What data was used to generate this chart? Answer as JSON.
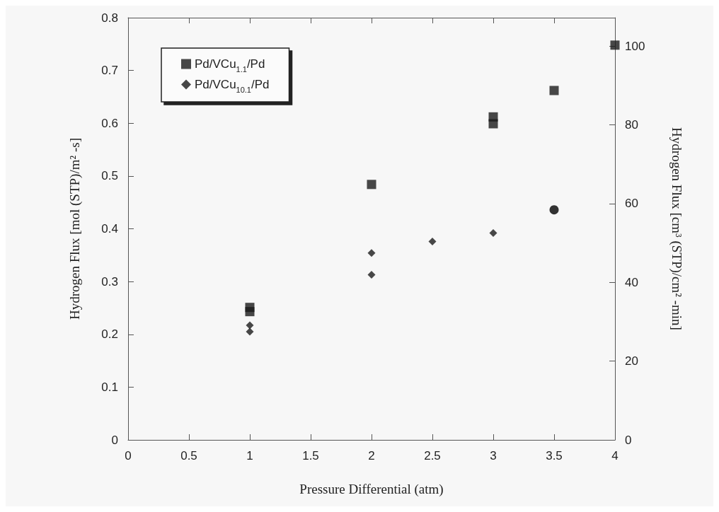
{
  "chart_data": {
    "type": "scatter",
    "xlabel": "Pressure Differential (atm)",
    "ylabel": "Hydrogen Flux [mol (STP)/m² -s]",
    "y2label": "Hydrogen Flux [cm³ (STP)/cm² -min]",
    "xlim": [
      0,
      4
    ],
    "xticks": [
      0,
      0.5,
      1,
      1.5,
      2,
      2.5,
      3,
      3.5,
      4
    ],
    "ylim": [
      0,
      0.8
    ],
    "yticks": [
      0,
      0.1,
      0.2,
      0.3,
      0.4,
      0.5,
      0.6,
      0.7,
      0.8
    ],
    "y2lim": [
      0,
      107.2
    ],
    "y2ticks": [
      0,
      20,
      40,
      60,
      80,
      100
    ],
    "grid": false,
    "legend": "top left",
    "series": [
      {
        "name": "Pd/VCu$_{1.1}$/Pd",
        "color": "#1a1a1a",
        "marker": "square",
        "x": [
          1,
          1,
          2,
          3,
          3,
          3.5,
          4
        ],
        "values": [
          0.251,
          0.243,
          0.484,
          0.612,
          0.599,
          0.662,
          0.748
        ]
      },
      {
        "name": "Pd/VCu$_{10.1}$/Pd",
        "color": "#1a1a1a",
        "marker": "diamond",
        "x": [
          1,
          1,
          2,
          2,
          2.5,
          3
        ],
        "values": [
          0.217,
          0.205,
          0.354,
          0.313,
          0.376,
          0.392
        ]
      },
      {
        "color": "#000000",
        "marker": "circle",
        "x": [
          3.5
        ],
        "values": [
          0.436
        ]
      }
    ]
  }
}
